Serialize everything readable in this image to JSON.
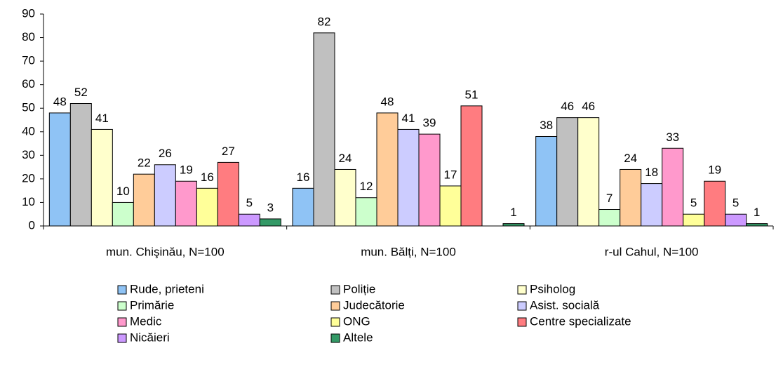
{
  "chart_data": {
    "type": "bar",
    "categories": [
      "mun. Chişinău, N=100",
      "mun. Bălți, N=100",
      "r-ul Cahul, N=100"
    ],
    "series": [
      {
        "name": "Rude, prieteni",
        "color": "#8fc3f5",
        "values": [
          48,
          16,
          38
        ]
      },
      {
        "name": "Poliție",
        "color": "#c0c0c0",
        "values": [
          52,
          82,
          46
        ]
      },
      {
        "name": "Psiholog",
        "color": "#ffffcc",
        "values": [
          41,
          24,
          46
        ]
      },
      {
        "name": "Primărie",
        "color": "#ccffcc",
        "values": [
          10,
          12,
          7
        ]
      },
      {
        "name": "Judecătorie",
        "color": "#ffcc99",
        "values": [
          22,
          48,
          24
        ]
      },
      {
        "name": "Asist. socială",
        "color": "#ccccff",
        "values": [
          26,
          41,
          18
        ]
      },
      {
        "name": "Medic",
        "color": "#ff99cc",
        "values": [
          19,
          39,
          33
        ]
      },
      {
        "name": "ONG",
        "color": "#ffff99",
        "values": [
          16,
          17,
          5
        ]
      },
      {
        "name": "Centre specializate",
        "color": "#ff7c80",
        "values": [
          27,
          51,
          19
        ]
      },
      {
        "name": "Nicăieri",
        "color": "#cc99ff",
        "values": [
          5,
          null,
          5
        ]
      },
      {
        "name": "Altele",
        "color": "#339966",
        "values": [
          3,
          1,
          1
        ]
      }
    ],
    "ylim": [
      0,
      90
    ],
    "yticks": [
      0,
      10,
      20,
      30,
      40,
      50,
      60,
      70,
      80,
      90
    ]
  }
}
